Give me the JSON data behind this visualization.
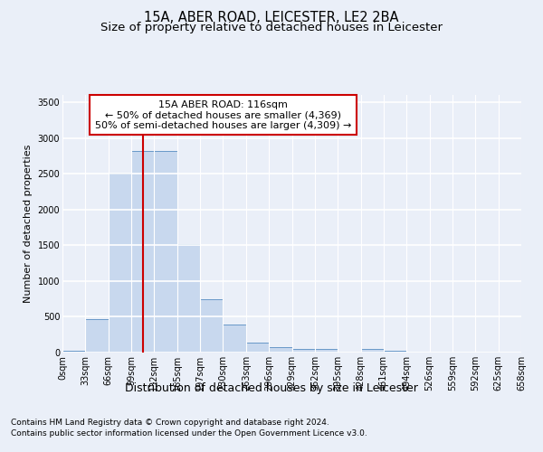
{
  "title": "15A, ABER ROAD, LEICESTER, LE2 2BA",
  "subtitle": "Size of property relative to detached houses in Leicester",
  "xlabel": "Distribution of detached houses by size in Leicester",
  "ylabel": "Number of detached properties",
  "bar_color": "#c8d8ee",
  "bar_edge_color": "#6898c8",
  "bin_labels": [
    "0sqm",
    "33sqm",
    "66sqm",
    "99sqm",
    "132sqm",
    "165sqm",
    "197sqm",
    "230sqm",
    "263sqm",
    "296sqm",
    "329sqm",
    "362sqm",
    "395sqm",
    "428sqm",
    "461sqm",
    "494sqm",
    "526sqm",
    "559sqm",
    "592sqm",
    "625sqm",
    "658sqm"
  ],
  "bar_heights": [
    20,
    470,
    2500,
    2820,
    2820,
    1520,
    750,
    390,
    140,
    70,
    50,
    50,
    0,
    50,
    20,
    0,
    0,
    0,
    0,
    0
  ],
  "ylim": [
    0,
    3600
  ],
  "yticks": [
    0,
    500,
    1000,
    1500,
    2000,
    2500,
    3000,
    3500
  ],
  "vline_position": 3.515,
  "annotation_line1": "15A ABER ROAD: 116sqm",
  "annotation_line2": "← 50% of detached houses are smaller (4,369)",
  "annotation_line3": "50% of semi-detached houses are larger (4,309) →",
  "annotation_box_color": "#ffffff",
  "annotation_box_edge": "#cc0000",
  "vline_color": "#cc0000",
  "footer_line1": "Contains HM Land Registry data © Crown copyright and database right 2024.",
  "footer_line2": "Contains public sector information licensed under the Open Government Licence v3.0.",
  "background_color": "#eaeff8",
  "plot_background": "#eaeff8",
  "grid_color": "#ffffff",
  "title_fontsize": 10.5,
  "subtitle_fontsize": 9.5,
  "xlabel_fontsize": 9,
  "ylabel_fontsize": 8,
  "tick_fontsize": 7,
  "annotation_fontsize": 8,
  "footer_fontsize": 6.5
}
